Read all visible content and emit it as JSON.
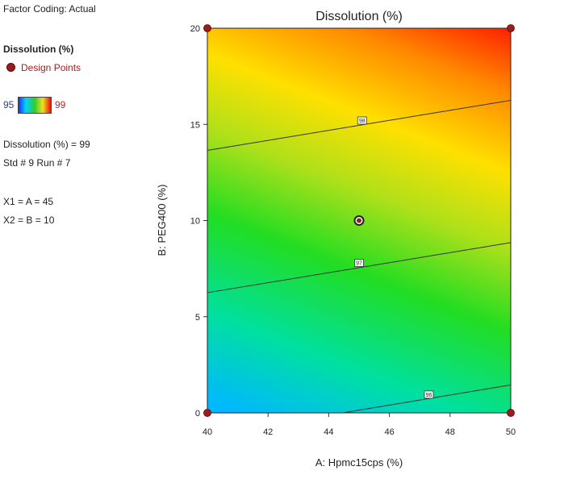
{
  "legend": {
    "factor_coding": "Factor Coding: Actual",
    "response_title": "Dissolution (%)",
    "design_points_label": "Design Points",
    "scale_min": "95",
    "scale_max": "99",
    "readout_value": "Dissolution (%) = 99",
    "readout_std_run": "Std # 9 Run # 7",
    "readout_x1": "X1 = A = 45",
    "readout_x2": "X2 = B = 10"
  },
  "colors": {
    "design_point": "#9b1c1c",
    "contour_line": "#333333",
    "scale_min_text": "#2b3f9a",
    "scale_max_text": "#b02a2a"
  },
  "chart_data": {
    "type": "contour",
    "title": "Dissolution (%)",
    "xlabel": "A: Hpmc15cps (%)",
    "ylabel": "B: PEG400 (%)",
    "xlim": [
      40,
      50
    ],
    "ylim": [
      0,
      20
    ],
    "xticks": [
      40,
      42,
      44,
      46,
      48,
      50
    ],
    "yticks": [
      0,
      5,
      10,
      15,
      20
    ],
    "color_scale": {
      "min": 95,
      "max": 99
    },
    "contours": [
      {
        "label": "98",
        "label_at": [
          45.1,
          15.2
        ],
        "points": [
          [
            40,
            13.65
          ],
          [
            50,
            16.25
          ]
        ]
      },
      {
        "label": "97",
        "label_at": [
          45.0,
          7.8
        ],
        "points": [
          [
            40,
            6.25
          ],
          [
            50,
            8.85
          ]
        ]
      },
      {
        "label": "96",
        "label_at": [
          47.3,
          0.95
        ],
        "points": [
          [
            44.45,
            0
          ],
          [
            50,
            1.45
          ]
        ]
      }
    ],
    "design_points": [
      [
        40,
        0
      ],
      [
        50,
        0
      ],
      [
        40,
        20
      ],
      [
        50,
        20
      ],
      [
        45,
        10
      ]
    ],
    "selected_point": [
      45,
      10
    ]
  }
}
